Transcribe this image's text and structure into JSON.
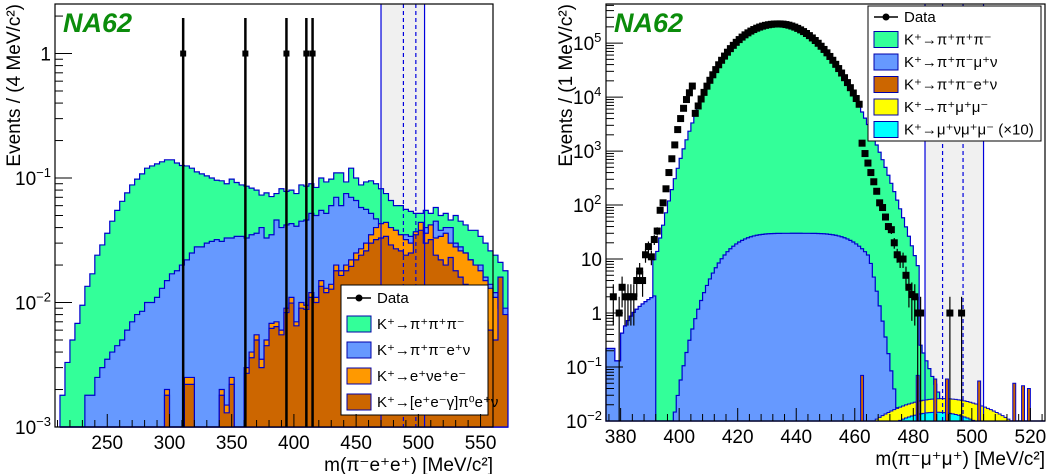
{
  "chart_data": [
    {
      "type": "histogram",
      "id": "left",
      "experiment_label": "NA62",
      "xlabel": "m(π⁻e⁺e⁺) [MeV/c²]",
      "ylabel": "Events / (4 MeV/c²)",
      "yscale": "log",
      "xlim": [
        208,
        560
      ],
      "ylim": [
        0.001,
        2.5
      ],
      "bin_width": 4,
      "x_ticks": [
        250,
        300,
        350,
        400,
        450,
        500,
        550
      ],
      "y_tick_labels": [
        {
          "value": 1,
          "label": "1"
        },
        {
          "value": 0.1,
          "label": "10",
          "exp": "−1"
        },
        {
          "value": 0.01,
          "label": "10",
          "exp": "−2"
        },
        {
          "value": 0.001,
          "label": "10",
          "exp": "−3"
        }
      ],
      "signal_region": {
        "outer": [
          470,
          505
        ],
        "inner": [
          488,
          498
        ]
      },
      "legend": {
        "placement": "bottom-right",
        "entries": [
          {
            "label": "Data",
            "kind": "marker"
          },
          {
            "label": "K⁺→π⁺π⁺π⁻",
            "color": "#33ff99"
          },
          {
            "label": "K⁺→π⁺π⁻e⁺ν",
            "color": "#6699ff"
          },
          {
            "label": "K⁺→e⁺νe⁺e⁻",
            "color": "#ff9900"
          },
          {
            "label": "K⁺→[e⁺e⁻γ]π⁰e⁺ν",
            "color": "#cc6600"
          }
        ]
      },
      "stack_totals": [
        {
          "name": "K+->pi+pi+pi- (stack top)",
          "color": "#33ff99",
          "x0": 212,
          "values": [
            0.0018,
            0.0033,
            0.005,
            0.0068,
            0.0095,
            0.0135,
            0.017,
            0.024,
            0.029,
            0.036,
            0.045,
            0.055,
            0.065,
            0.076,
            0.088,
            0.098,
            0.108,
            0.12,
            0.125,
            0.13,
            0.135,
            0.14,
            0.14,
            0.132,
            0.126,
            0.125,
            0.12,
            0.112,
            0.108,
            0.104,
            0.1,
            0.096,
            0.095,
            0.09,
            0.098,
            0.092,
            0.088,
            0.086,
            0.083,
            0.08,
            0.073,
            0.076,
            0.071,
            0.075,
            0.082,
            0.078,
            0.08,
            0.075,
            0.088,
            0.086,
            0.09,
            0.084,
            0.1,
            0.093,
            0.098,
            0.11,
            0.11,
            0.093,
            0.12,
            0.1,
            0.088,
            0.093,
            0.095,
            0.09,
            0.082,
            0.075,
            0.066,
            0.06,
            0.06,
            0.056,
            0.054,
            0.052,
            0.052,
            0.055,
            0.052,
            0.058,
            0.05,
            0.052,
            0.046,
            0.05,
            0.045,
            0.042,
            0.038,
            0.038,
            0.034,
            0.03,
            0.026,
            0.024,
            0.021,
            0.018
          ]
        },
        {
          "name": "K+->pi+pi-e+nu (stack top)",
          "color": "#6699ff",
          "x0": 212,
          "values": [
            0.0005,
            0.0005,
            0.0005,
            0.0005,
            0.0005,
            0.0018,
            0.0018,
            0.0025,
            0.003,
            0.0035,
            0.004,
            0.0045,
            0.005,
            0.006,
            0.007,
            0.008,
            0.0085,
            0.01,
            0.01,
            0.011,
            0.013,
            0.015,
            0.017,
            0.018,
            0.02,
            0.022,
            0.025,
            0.028,
            0.028,
            0.03,
            0.031,
            0.032,
            0.031,
            0.033,
            0.033,
            0.034,
            0.034,
            0.033,
            0.035,
            0.036,
            0.04,
            0.033,
            0.035,
            0.046,
            0.04,
            0.042,
            0.043,
            0.041,
            0.045,
            0.046,
            0.052,
            0.05,
            0.055,
            0.052,
            0.06,
            0.07,
            0.06,
            0.075,
            0.07,
            0.066,
            0.058,
            0.056,
            0.052,
            0.047,
            0.043,
            0.041,
            0.04,
            0.038,
            0.035,
            0.035,
            0.034,
            0.036,
            0.037,
            0.04,
            0.042,
            0.045,
            0.038,
            0.04,
            0.04,
            0.03,
            0.028,
            0.025,
            0.022,
            0.02,
            0.02,
            0.016,
            0.014,
            0.012,
            0.01,
            0.009
          ]
        },
        {
          "name": "K+->e+nue+e- (stack top)",
          "color": "#ff9900",
          "x0": 212,
          "values": [
            0.0005,
            0.0005,
            0.0005,
            0.0005,
            0.0005,
            0.0005,
            0.0005,
            0.0005,
            0.0005,
            0.0005,
            0.0005,
            0.0005,
            0.0005,
            0.0005,
            0.0005,
            0.0005,
            0.0005,
            0.0005,
            0.0005,
            0.0005,
            0.0005,
            0.002,
            0.0005,
            0.0005,
            0.0005,
            0.0025,
            0.0025,
            0.0005,
            0.0005,
            0.0005,
            0.0005,
            0.0005,
            0.002,
            0.0015,
            0.0025,
            0.0005,
            0.0005,
            0.003,
            0.004,
            0.0055,
            0.0035,
            0.005,
            0.0068,
            0.007,
            0.006,
            0.009,
            0.011,
            0.007,
            0.01,
            0.0095,
            0.012,
            0.011,
            0.015,
            0.013,
            0.014,
            0.02,
            0.018,
            0.02,
            0.022,
            0.025,
            0.027,
            0.03,
            0.035,
            0.04,
            0.043,
            0.044,
            0.04,
            0.038,
            0.035,
            0.032,
            0.03,
            0.037,
            0.044,
            0.036,
            0.042,
            0.033,
            0.034,
            0.036,
            0.03,
            0.028,
            0.026,
            0.025,
            0.022,
            0.02,
            0.018,
            0.015,
            0.013,
            0.011,
            0.009,
            0.008
          ]
        },
        {
          "name": "K+->[e+e-gamma]pi0 e+nu",
          "color": "#cc6600",
          "x0": 212,
          "values": [
            0.0005,
            0.0005,
            0.0005,
            0.0005,
            0.0005,
            0.0005,
            0.0005,
            0.0005,
            0.0005,
            0.0005,
            0.0005,
            0.0005,
            0.0005,
            0.0005,
            0.0005,
            0.0005,
            0.0005,
            0.0005,
            0.0005,
            0.0005,
            0.0005,
            0.0018,
            0.0005,
            0.0005,
            0.0005,
            0.0022,
            0.0022,
            0.0005,
            0.0005,
            0.0005,
            0.0005,
            0.0005,
            0.0018,
            0.0013,
            0.0022,
            0.0005,
            0.0005,
            0.0027,
            0.0036,
            0.005,
            0.003,
            0.0045,
            0.0062,
            0.0064,
            0.0055,
            0.0083,
            0.0099,
            0.0065,
            0.009,
            0.0088,
            0.011,
            0.01,
            0.0135,
            0.012,
            0.0128,
            0.018,
            0.0165,
            0.018,
            0.0195,
            0.022,
            0.024,
            0.026,
            0.03,
            0.032,
            0.033,
            0.034,
            0.029,
            0.027,
            0.026,
            0.024,
            0.025,
            0.035,
            0.038,
            0.03,
            0.032,
            0.024,
            0.022,
            0.02,
            0.023,
            0.018,
            0.016,
            0.014,
            0.012,
            0.011,
            0.009,
            0.007,
            0.006,
            0.005,
            0.016,
            0.008
          ]
        }
      ],
      "data_points": [
        {
          "x": 311,
          "y": 1
        },
        {
          "x": 361,
          "y": 1
        },
        {
          "x": 394,
          "y": 1
        },
        {
          "x": 410,
          "y": 1
        },
        {
          "x": 415,
          "y": 1
        }
      ]
    },
    {
      "type": "histogram",
      "id": "right",
      "experiment_label": "NA62",
      "xlabel": "m(π⁻μ⁺μ⁺) [MeV/c²]",
      "ylabel": "Events / (1 MeV/c²)",
      "yscale": "log",
      "xlim": [
        375,
        525
      ],
      "ylim": [
        0.01,
        530000
      ],
      "bin_width": 1,
      "x_ticks": [
        380,
        400,
        420,
        440,
        460,
        480,
        500,
        520
      ],
      "y_tick_labels": [
        {
          "value": 100000,
          "label": "10",
          "exp": "5"
        },
        {
          "value": 10000,
          "label": "10",
          "exp": "4"
        },
        {
          "value": 1000,
          "label": "10",
          "exp": "3"
        },
        {
          "value": 100,
          "label": "10",
          "exp": "2"
        },
        {
          "value": 10,
          "label": "10"
        },
        {
          "value": 1,
          "label": "1"
        },
        {
          "value": 0.1,
          "label": "10",
          "exp": "−1"
        },
        {
          "value": 0.01,
          "label": "10",
          "exp": "−2"
        }
      ],
      "signal_region": {
        "outer": [
          484,
          504
        ],
        "inner": [
          490,
          497
        ]
      },
      "legend": {
        "placement": "top-right",
        "entries": [
          {
            "label": "Data",
            "kind": "marker"
          },
          {
            "label": "K⁺→π⁺π⁺π⁻",
            "color": "#33ff99"
          },
          {
            "label": "K⁺→π⁺π⁻μ⁺ν",
            "color": "#6699ff"
          },
          {
            "label": "K⁺→π⁺π⁻e⁺ν",
            "color": "#cc6600"
          },
          {
            "label": "K⁺→π⁺μ⁺μ⁻",
            "color": "#ffff00"
          },
          {
            "label": "K⁺→μ⁺νμ⁺μ⁻ (×10)",
            "color": "#00ffff"
          }
        ]
      },
      "k3pi_peak": {
        "mu": 434,
        "peak": 210000
      },
      "data_points_low": [
        {
          "x": 377.5,
          "y": 2
        },
        {
          "x": 379.5,
          "y": 1
        },
        {
          "x": 380.5,
          "y": 3
        },
        {
          "x": 381.5,
          "y": 2
        },
        {
          "x": 382.5,
          "y": 2
        },
        {
          "x": 383.5,
          "y": 2
        },
        {
          "x": 384.5,
          "y": 2
        },
        {
          "x": 385.5,
          "y": 4
        },
        {
          "x": 386.5,
          "y": 6
        },
        {
          "x": 387.5,
          "y": 4
        },
        {
          "x": 388.5,
          "y": 12
        },
        {
          "x": 389.5,
          "y": 17
        },
        {
          "x": 390.5,
          "y": 11
        },
        {
          "x": 391.5,
          "y": 23
        },
        {
          "x": 392.5,
          "y": 33
        },
        {
          "x": 393.5,
          "y": 80
        },
        {
          "x": 394.5,
          "y": 110
        },
        {
          "x": 395.5,
          "y": 200
        },
        {
          "x": 396.5,
          "y": 400
        },
        {
          "x": 397.5,
          "y": 720
        },
        {
          "x": 398.5,
          "y": 1300
        },
        {
          "x": 399.5,
          "y": 2500
        },
        {
          "x": 400.5,
          "y": 4000
        },
        {
          "x": 401.5,
          "y": 6200
        },
        {
          "x": 402.5,
          "y": 9000
        },
        {
          "x": 403.5,
          "y": 12000
        },
        {
          "x": 404.5,
          "y": 16000
        }
      ],
      "data_points_high": [
        {
          "x": 462.5,
          "y": 1400
        },
        {
          "x": 463.5,
          "y": 900
        },
        {
          "x": 464.5,
          "y": 600
        },
        {
          "x": 465.5,
          "y": 400
        },
        {
          "x": 466.5,
          "y": 270
        },
        {
          "x": 467.5,
          "y": 180
        },
        {
          "x": 468.5,
          "y": 110
        },
        {
          "x": 469.5,
          "y": 90
        },
        {
          "x": 470.5,
          "y": 60
        },
        {
          "x": 471.5,
          "y": 40
        },
        {
          "x": 472.5,
          "y": 35
        },
        {
          "x": 473.5,
          "y": 20
        },
        {
          "x": 474.5,
          "y": 12
        },
        {
          "x": 475.5,
          "y": 10
        },
        {
          "x": 476.5,
          "y": 10
        },
        {
          "x": 477.5,
          "y": 5
        },
        {
          "x": 478.5,
          "y": 3
        },
        {
          "x": 479.5,
          "y": 2.2
        },
        {
          "x": 480.5,
          "y": 2
        },
        {
          "x": 481.5,
          "y": 1
        },
        {
          "x": 482.5,
          "y": 1
        },
        {
          "x": 492.5,
          "y": 1
        },
        {
          "x": 496.5,
          "y": 1
        }
      ]
    }
  ]
}
